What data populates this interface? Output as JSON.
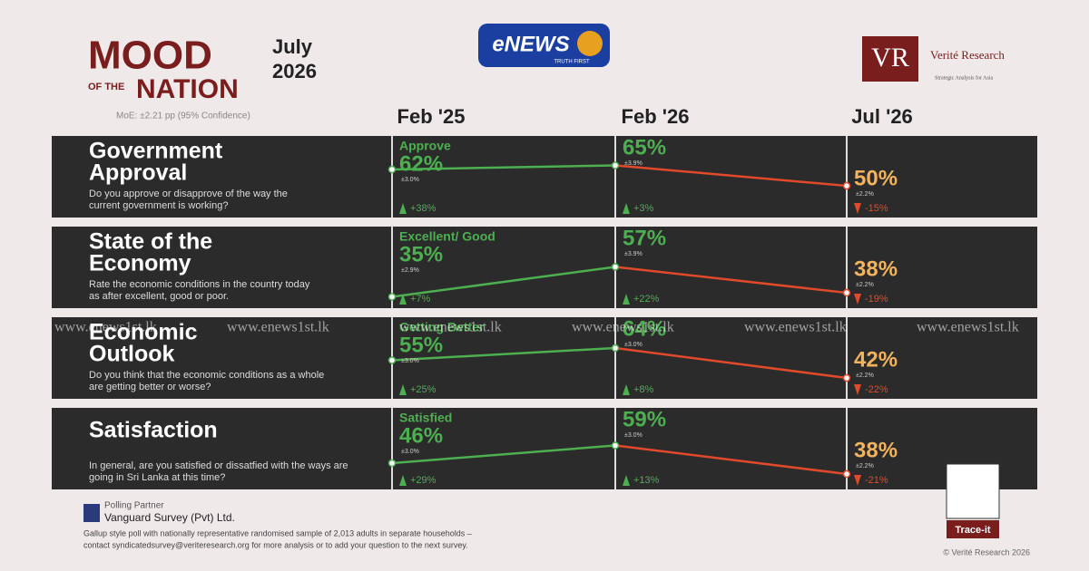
{
  "header": {
    "brand_top": "MOOD",
    "brand_small": "OF THE",
    "brand_bottom": "NATION",
    "month": "July",
    "year": "2026",
    "moe": "MoE: ±2.21 pp (95% Confidence)",
    "news_logo": "eNEWS",
    "news_tagline": "TRUTH FIRST",
    "research_logo": "VR",
    "research_name": "Verité Research",
    "research_tagline": "Strategic Analysis for Asia"
  },
  "columns": [
    "Feb '25",
    "Feb '26",
    "Jul '26"
  ],
  "rows": [
    {
      "title": [
        "Government",
        "Approval"
      ],
      "question": [
        "Do you approve or disapprove of the way the",
        "current government is working?"
      ],
      "sub_label": "Approve",
      "points": [
        {
          "value": 62,
          "label": "62%",
          "moe": "±3.0%",
          "change": "+38%"
        },
        {
          "value": 65,
          "label": "65%",
          "moe": "±3.9%",
          "change": "+3%"
        },
        {
          "value": 50,
          "label": "50%",
          "moe": "±2.2%",
          "change": "-15%"
        }
      ]
    },
    {
      "title": [
        "State of the",
        "Economy"
      ],
      "question": [
        "Rate the economic conditions in the country today",
        "as after excellent, good or poor."
      ],
      "sub_label": "Excellent/ Good",
      "points": [
        {
          "value": 35,
          "label": "35%",
          "moe": "±2.9%",
          "change": "+7%"
        },
        {
          "value": 57,
          "label": "57%",
          "moe": "±3.9%",
          "change": "+22%"
        },
        {
          "value": 38,
          "label": "38%",
          "moe": "±2.2%",
          "change": "-19%"
        }
      ]
    },
    {
      "title": [
        "Economic",
        "Outlook"
      ],
      "question": [
        "Do you think that the economic conditions as a whole",
        "are getting better or worse?"
      ],
      "sub_label": "Getting Better",
      "points": [
        {
          "value": 55,
          "label": "55%",
          "moe": "±3.0%",
          "change": "+25%"
        },
        {
          "value": 64,
          "label": "64%",
          "moe": "±3.0%",
          "change": "+8%"
        },
        {
          "value": 42,
          "label": "42%",
          "moe": "±2.2%",
          "change": "-22%"
        }
      ]
    },
    {
      "title": [
        "Satisfaction"
      ],
      "question": [
        "In general, are you satisfied or dissatfied with the ways are",
        "going in Sri Lanka at this time?"
      ],
      "sub_label": "Satisfied",
      "points": [
        {
          "value": 46,
          "label": "46%",
          "moe": "±3.0%",
          "change": "+29%"
        },
        {
          "value": 59,
          "label": "59%",
          "moe": "±3.0%",
          "change": "+13%"
        },
        {
          "value": 38,
          "label": "38%",
          "moe": "±2.2%",
          "change": "-21%"
        }
      ]
    }
  ],
  "watermark": "www.enews1st.lk",
  "footer": {
    "partner_label": "Polling Partner",
    "partner_name": "Vanguard Survey (Pvt) Ltd.",
    "note": [
      "Gallup style poll with nationally representative randomised sample of 2,013 adults in separate households –",
      "contact syndicatedsurvey@veriteresearch.org for more analysis or to add your question to the next survey."
    ],
    "qr_label": "Trace-it",
    "copyright": "© Verité Research 2026"
  }
}
